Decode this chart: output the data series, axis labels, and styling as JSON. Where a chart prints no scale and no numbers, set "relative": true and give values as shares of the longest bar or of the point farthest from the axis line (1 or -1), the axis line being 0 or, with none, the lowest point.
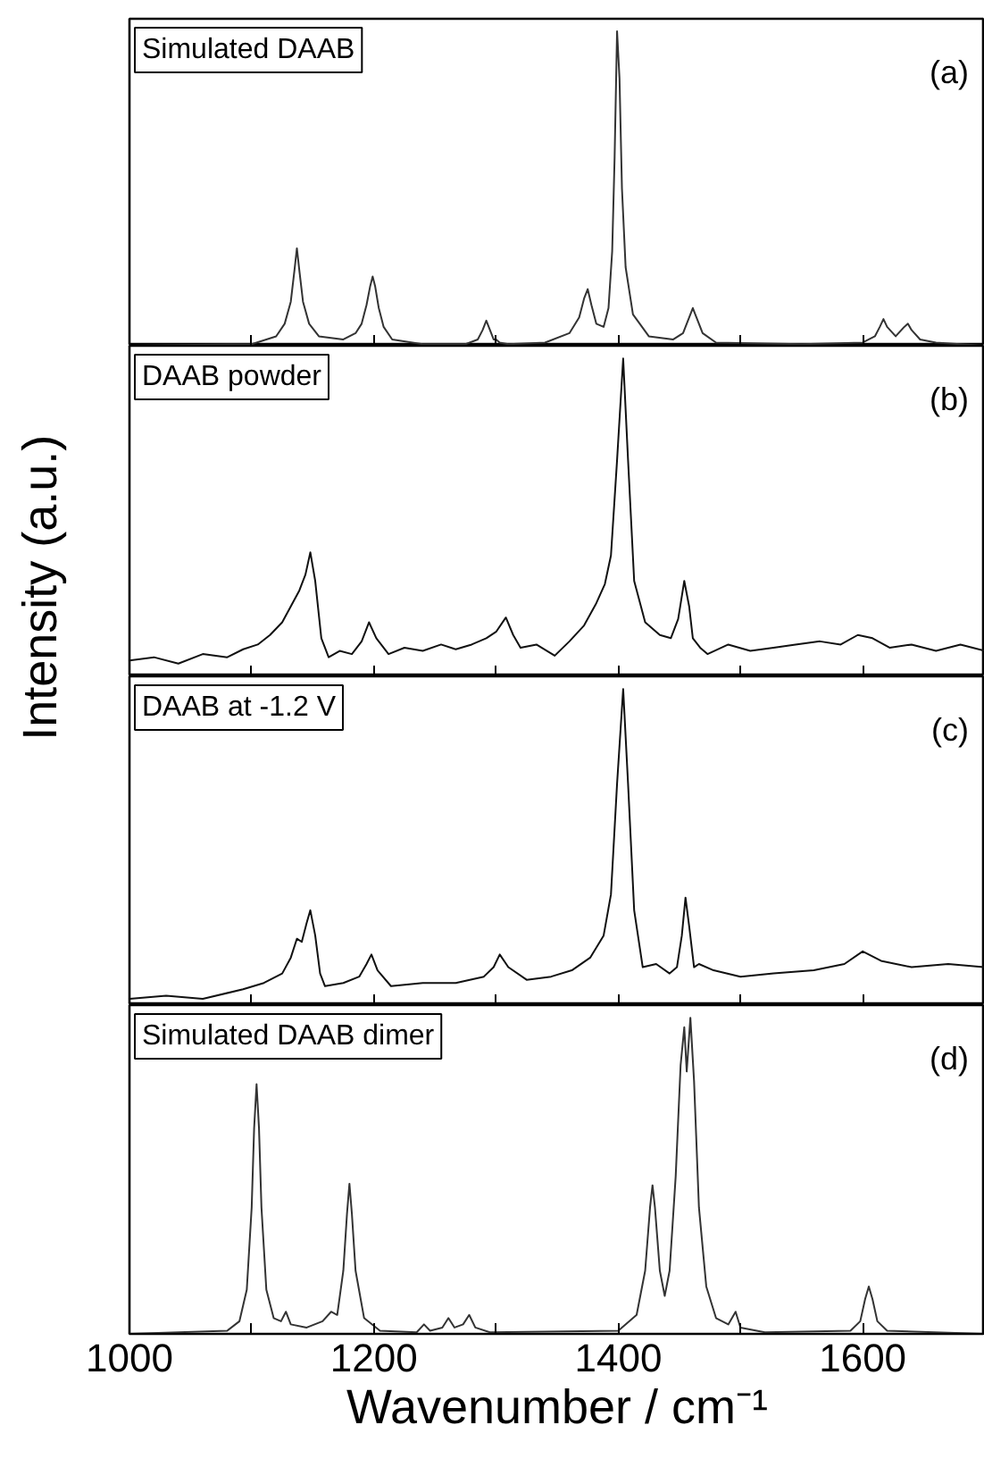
{
  "chart_data": [
    {
      "type": "line",
      "relative": true,
      "ylabel": "Intensity (a.u.)",
      "annotations": [
        "Simulated DAAB",
        "(a)"
      ],
      "xlim": [
        1000,
        1700
      ],
      "xticks": [
        1000,
        {
          "value": 1100,
          "label": null
        },
        1200,
        {
          "value": 1300,
          "label": null
        },
        1400,
        {
          "value": 1500,
          "label": null
        },
        1600,
        {
          "value": 1700,
          "label": null
        }
      ],
      "tick_labels": false,
      "grid": false,
      "x": [
        1000,
        1100,
        1120,
        1127,
        1132,
        1135,
        1137,
        1139,
        1142,
        1147,
        1155,
        1175,
        1185,
        1190,
        1194,
        1197,
        1199,
        1201,
        1204,
        1208,
        1215,
        1240,
        1275,
        1285,
        1289,
        1292,
        1295,
        1298,
        1300,
        1303,
        1310,
        1340,
        1360,
        1368,
        1372,
        1375,
        1378,
        1382,
        1388,
        1392,
        1395,
        1397,
        1399,
        1401,
        1403,
        1406,
        1412,
        1425,
        1445,
        1453,
        1458,
        1461,
        1464,
        1469,
        1480,
        1550,
        1600,
        1610,
        1614,
        1617,
        1620,
        1627,
        1634,
        1637,
        1640,
        1647,
        1660,
        1700
      ],
      "series": [
        {
          "color": "#333333",
          "values": [
            0,
            0.005,
            0.03,
            0.07,
            0.14,
            0.24,
            0.31,
            0.24,
            0.14,
            0.07,
            0.03,
            0.02,
            0.04,
            0.07,
            0.13,
            0.19,
            0.22,
            0.19,
            0.12,
            0.06,
            0.02,
            0.005,
            0.005,
            0.02,
            0.05,
            0.08,
            0.05,
            0.02,
            0.02,
            0.01,
            0.005,
            0.01,
            0.04,
            0.09,
            0.15,
            0.18,
            0.13,
            0.07,
            0.06,
            0.12,
            0.3,
            0.6,
            1.0,
            0.85,
            0.5,
            0.25,
            0.1,
            0.03,
            0.02,
            0.04,
            0.09,
            0.12,
            0.09,
            0.04,
            0.01,
            0.005,
            0.01,
            0.03,
            0.06,
            0.085,
            0.06,
            0.03,
            0.06,
            0.07,
            0.05,
            0.02,
            0.01,
            0
          ]
        }
      ]
    },
    {
      "type": "line",
      "relative": true,
      "annotations": [
        "DAAB powder",
        "(b)"
      ],
      "xlim": [
        1000,
        1700
      ],
      "xticks": [
        1000,
        {
          "value": 1100,
          "label": null
        },
        1200,
        {
          "value": 1300,
          "label": null
        },
        1400,
        {
          "value": 1500,
          "label": null
        },
        1600,
        {
          "value": 1700,
          "label": null
        }
      ],
      "tick_labels": false,
      "grid": false,
      "x": [
        1000,
        1020,
        1040,
        1060,
        1080,
        1093,
        1105,
        1115,
        1125,
        1132,
        1139,
        1144,
        1148,
        1152,
        1157,
        1163,
        1172,
        1182,
        1190,
        1196,
        1202,
        1212,
        1225,
        1240,
        1255,
        1267,
        1280,
        1292,
        1300,
        1308,
        1314,
        1320,
        1333,
        1348,
        1360,
        1372,
        1382,
        1389,
        1394,
        1399,
        1404,
        1408,
        1413,
        1422,
        1434,
        1443,
        1449,
        1454,
        1458,
        1461,
        1467,
        1473,
        1490,
        1508,
        1527,
        1545,
        1565,
        1582,
        1596,
        1608,
        1622,
        1640,
        1660,
        1680,
        1690,
        1700
      ],
      "series": [
        {
          "color": "#111111",
          "values": [
            0.05,
            0.06,
            0.04,
            0.07,
            0.06,
            0.085,
            0.1,
            0.13,
            0.17,
            0.22,
            0.27,
            0.32,
            0.39,
            0.3,
            0.12,
            0.06,
            0.08,
            0.07,
            0.11,
            0.17,
            0.12,
            0.07,
            0.09,
            0.08,
            0.1,
            0.085,
            0.1,
            0.12,
            0.14,
            0.185,
            0.13,
            0.09,
            0.1,
            0.065,
            0.11,
            0.16,
            0.23,
            0.29,
            0.38,
            0.68,
            1.0,
            0.68,
            0.3,
            0.17,
            0.13,
            0.12,
            0.18,
            0.3,
            0.22,
            0.12,
            0.09,
            0.07,
            0.1,
            0.08,
            0.09,
            0.1,
            0.11,
            0.1,
            0.13,
            0.12,
            0.09,
            0.1,
            0.08,
            0.1,
            0.09,
            0.08
          ]
        }
      ]
    },
    {
      "type": "line",
      "relative": true,
      "annotations": [
        "DAAB at -1.2 V",
        "(c)"
      ],
      "xlim": [
        1000,
        1700
      ],
      "xticks": [
        1000,
        {
          "value": 1100,
          "label": null
        },
        1200,
        {
          "value": 1300,
          "label": null
        },
        1400,
        {
          "value": 1500,
          "label": null
        },
        1600,
        {
          "value": 1700,
          "label": null
        }
      ],
      "tick_labels": false,
      "grid": false,
      "x": [
        1000,
        1030,
        1060,
        1093,
        1110,
        1125,
        1132,
        1137,
        1141,
        1145,
        1148,
        1152,
        1156,
        1160,
        1175,
        1188,
        1194,
        1198,
        1203,
        1214,
        1240,
        1267,
        1290,
        1298,
        1303,
        1310,
        1325,
        1345,
        1362,
        1377,
        1388,
        1394,
        1399,
        1404,
        1408,
        1413,
        1420,
        1431,
        1442,
        1448,
        1452,
        1455,
        1458,
        1462,
        1466,
        1478,
        1500,
        1527,
        1560,
        1585,
        1600,
        1615,
        1640,
        1670,
        1700
      ],
      "series": [
        {
          "color": "#111111",
          "values": [
            0.02,
            0.03,
            0.02,
            0.05,
            0.07,
            0.1,
            0.15,
            0.21,
            0.2,
            0.26,
            0.3,
            0.22,
            0.1,
            0.06,
            0.07,
            0.09,
            0.13,
            0.16,
            0.11,
            0.06,
            0.07,
            0.07,
            0.09,
            0.12,
            0.16,
            0.12,
            0.08,
            0.09,
            0.11,
            0.15,
            0.22,
            0.35,
            0.7,
            1.0,
            0.7,
            0.3,
            0.12,
            0.13,
            0.1,
            0.12,
            0.22,
            0.34,
            0.25,
            0.12,
            0.13,
            0.11,
            0.09,
            0.1,
            0.11,
            0.13,
            0.17,
            0.14,
            0.12,
            0.13,
            0.12
          ]
        }
      ]
    },
    {
      "type": "line",
      "relative": true,
      "xlabel": "Wavenumber / cm⁻¹",
      "annotations": [
        "Simulated DAAB dimer",
        "(d)"
      ],
      "xlim": [
        1000,
        1700
      ],
      "xticks": [
        1000,
        {
          "value": 1100,
          "label": null
        },
        1200,
        {
          "value": 1300,
          "label": null
        },
        1400,
        {
          "value": 1500,
          "label": null
        },
        1600,
        {
          "value": 1700,
          "label": null
        }
      ],
      "tick_labels": "x",
      "grid": false,
      "x": [
        1000,
        1080,
        1090,
        1096,
        1100,
        1102,
        1104,
        1106,
        1108,
        1112,
        1118,
        1124,
        1128,
        1132,
        1145,
        1158,
        1165,
        1170,
        1175,
        1178,
        1180,
        1182,
        1185,
        1192,
        1205,
        1235,
        1241,
        1246,
        1256,
        1261,
        1266,
        1273,
        1278,
        1283,
        1295,
        1400,
        1415,
        1422,
        1426,
        1428,
        1430,
        1434,
        1438,
        1442,
        1447,
        1451,
        1454,
        1456,
        1459,
        1462,
        1466,
        1472,
        1480,
        1490,
        1496,
        1500,
        1520,
        1590,
        1598,
        1602,
        1605,
        1608,
        1612,
        1620,
        1700
      ],
      "series": [
        {
          "color": "#333333",
          "values": [
            0,
            0.01,
            0.04,
            0.14,
            0.4,
            0.65,
            0.79,
            0.65,
            0.4,
            0.14,
            0.05,
            0.04,
            0.07,
            0.03,
            0.02,
            0.04,
            0.07,
            0.06,
            0.2,
            0.38,
            0.475,
            0.38,
            0.2,
            0.05,
            0.01,
            0.005,
            0.03,
            0.01,
            0.02,
            0.05,
            0.02,
            0.03,
            0.06,
            0.02,
            0.005,
            0.01,
            0.06,
            0.2,
            0.4,
            0.47,
            0.4,
            0.2,
            0.12,
            0.2,
            0.5,
            0.85,
            0.97,
            0.83,
            1.0,
            0.8,
            0.4,
            0.15,
            0.05,
            0.03,
            0.07,
            0.02,
            0.005,
            0.01,
            0.04,
            0.11,
            0.15,
            0.11,
            0.04,
            0.01,
            0
          ]
        }
      ]
    }
  ]
}
